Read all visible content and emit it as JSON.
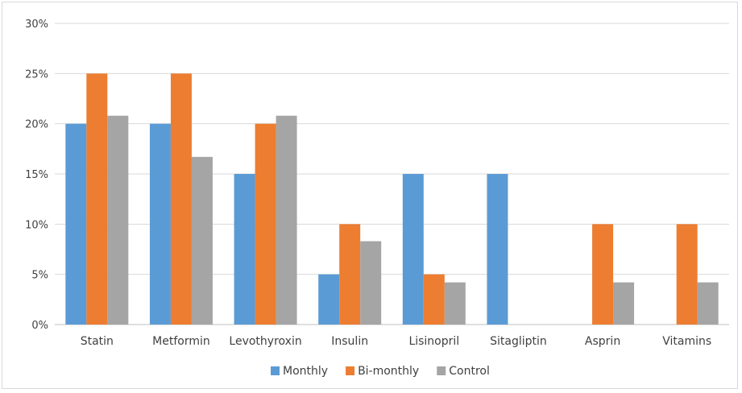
{
  "chart_data": {
    "type": "bar",
    "categories": [
      "Statin",
      "Metformin",
      "Levothyroxin",
      "Insulin",
      "Lisinopril",
      "Sitagliptin",
      "Asprin",
      "Vitamins"
    ],
    "series": [
      {
        "name": "Monthly",
        "values": [
          20,
          20,
          15,
          5,
          15,
          15,
          0,
          0
        ],
        "color": "#5b9bd5"
      },
      {
        "name": "Bi-monthly",
        "values": [
          25,
          25,
          20,
          10,
          5,
          0,
          10,
          10
        ],
        "color": "#ed7d31"
      },
      {
        "name": "Control",
        "values": [
          20.8,
          16.7,
          20.8,
          8.3,
          4.2,
          0,
          4.2,
          4.2
        ],
        "color": "#a5a5a5"
      }
    ],
    "y_ticks": [
      "0%",
      "5%",
      "10%",
      "15%",
      "20%",
      "25%",
      "30%"
    ],
    "ylim": [
      0,
      30
    ],
    "grid": true,
    "legend_position": "bottom"
  }
}
